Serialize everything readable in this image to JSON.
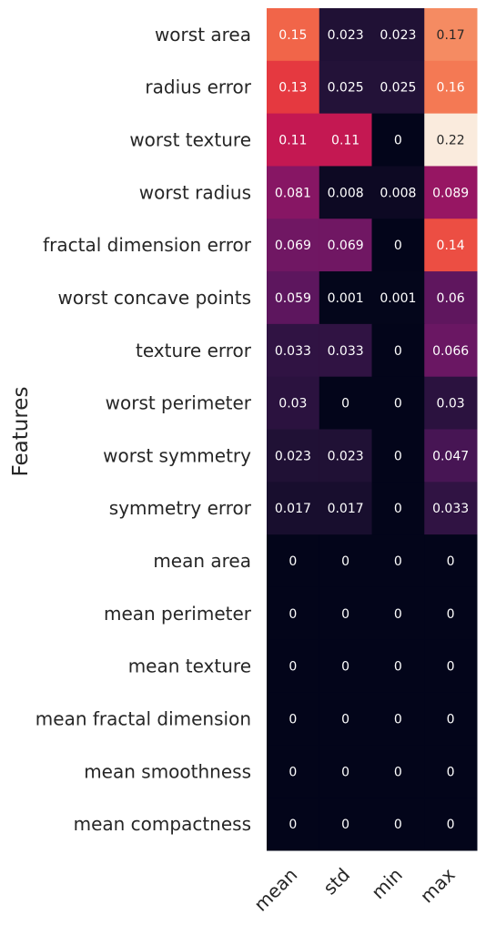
{
  "chart_data": {
    "type": "heatmap",
    "ylabel": "Features",
    "columns": [
      "mean",
      "std",
      "min",
      "max"
    ],
    "rows": [
      "worst area",
      "radius error",
      "worst texture",
      "worst radius",
      "fractal dimension error",
      "worst concave points",
      "texture error",
      "worst perimeter",
      "worst symmetry",
      "symmetry error",
      "mean area",
      "mean perimeter",
      "mean texture",
      "mean fractal dimension",
      "mean smoothness",
      "mean compactness"
    ],
    "values": [
      [
        0.15,
        0.023,
        0.023,
        0.17
      ],
      [
        0.13,
        0.025,
        0.025,
        0.16
      ],
      [
        0.11,
        0.11,
        0,
        0.22
      ],
      [
        0.081,
        0.008,
        0.008,
        0.089
      ],
      [
        0.069,
        0.069,
        0,
        0.14
      ],
      [
        0.059,
        0.001,
        0.001,
        0.06
      ],
      [
        0.033,
        0.033,
        0,
        0.066
      ],
      [
        0.03,
        0,
        0,
        0.03
      ],
      [
        0.023,
        0.023,
        0,
        0.047
      ],
      [
        0.017,
        0.017,
        0,
        0.033
      ],
      [
        0,
        0,
        0,
        0
      ],
      [
        0,
        0,
        0,
        0
      ],
      [
        0,
        0,
        0,
        0
      ],
      [
        0,
        0,
        0,
        0
      ],
      [
        0,
        0,
        0,
        0
      ],
      [
        0,
        0,
        0,
        0
      ]
    ],
    "color_range": [
      0,
      0.22
    ],
    "colormap": "rocket",
    "annotated": true,
    "colorbar": false
  }
}
